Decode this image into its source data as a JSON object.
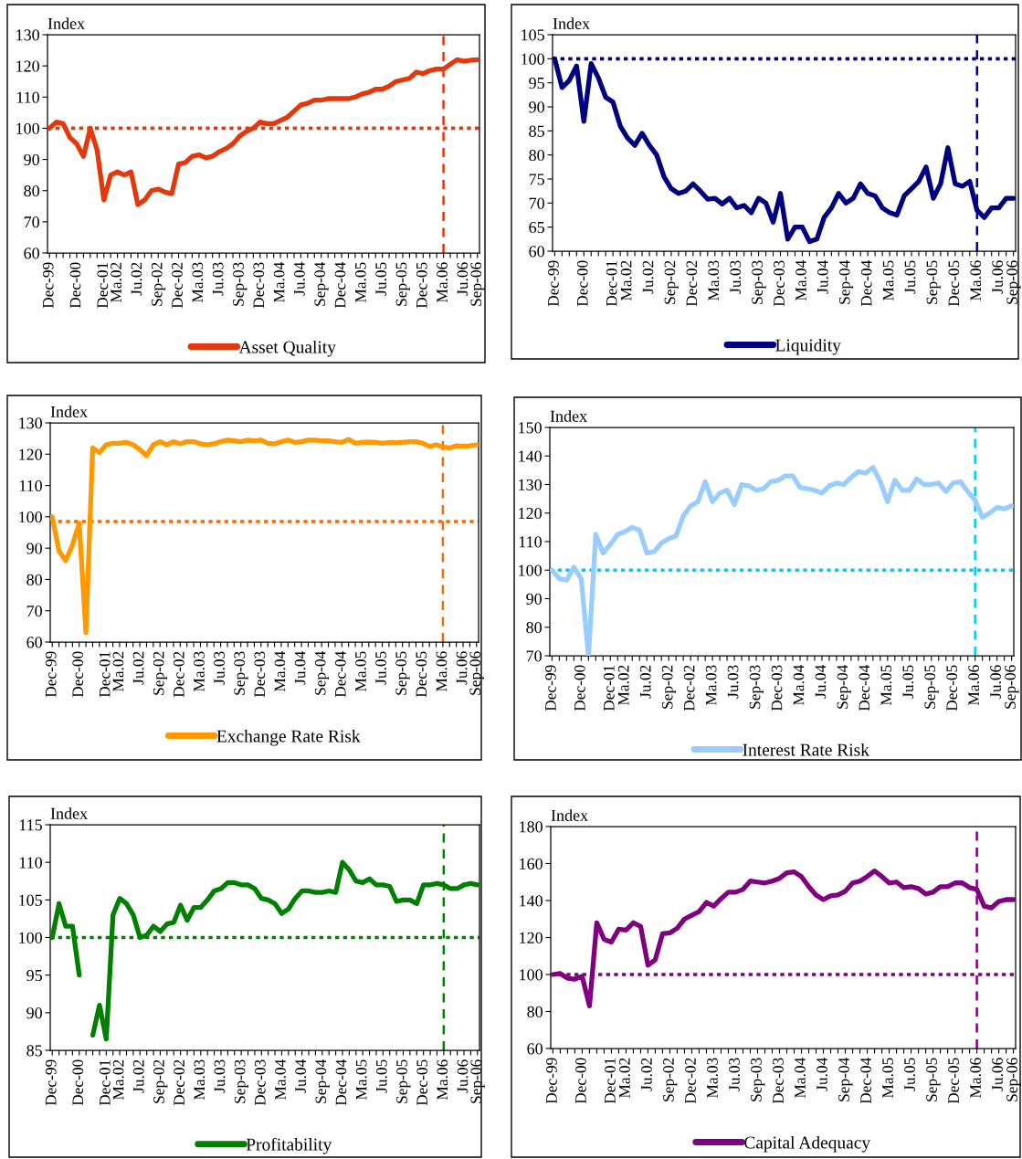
{
  "chart_data": [
    {
      "type": "line",
      "ylabel": "Index",
      "categories": [
        "Dec-99",
        null,
        null,
        null,
        "Dec-00",
        null,
        null,
        null,
        "Dec-01",
        null,
        "Ma.02",
        null,
        null,
        "Ju.02",
        null,
        null,
        "Sep-02",
        null,
        null,
        "Dec-02",
        null,
        null,
        "Ma.03",
        null,
        null,
        "Ju.03",
        null,
        null,
        "Sep-03",
        null,
        null,
        "Dec-03",
        null,
        null,
        "Ma.04",
        null,
        null,
        "Ju.04",
        null,
        null,
        "Sep-04",
        null,
        null,
        "Dec-04",
        null,
        null,
        "Ma.05",
        null,
        null,
        "Ju.05",
        null,
        null,
        "Sep-05",
        null,
        null,
        "Dec-05",
        null,
        null,
        "Ma.06",
        null,
        null,
        "Ju.06",
        null,
        "Sep-06"
      ],
      "series": [
        {
          "name": "Asset Quality",
          "color": "#e4380c",
          "values": [
            100,
            102,
            101.5,
            97,
            95,
            91,
            100,
            93,
            77,
            85,
            86,
            85,
            86,
            75.5,
            77,
            80,
            80.5,
            79.5,
            79,
            88.5,
            89,
            91,
            91.5,
            90.5,
            91,
            92.5,
            93.5,
            95,
            97.5,
            99,
            100,
            102,
            101.5,
            101.5,
            102.5,
            103.5,
            105.5,
            107.5,
            108,
            109,
            109,
            109.5,
            109.5,
            109.5,
            109.5,
            110,
            111,
            111.5,
            112.5,
            112.5,
            113.5,
            115,
            115.5,
            116,
            118,
            117.5,
            118.5,
            119,
            119,
            120.5,
            122,
            121.5,
            121.8,
            122
          ]
        }
      ],
      "ylim": [
        60,
        130
      ],
      "yticks": [
        60,
        70,
        80,
        90,
        100,
        110,
        120,
        130
      ],
      "legend": "bottom",
      "ref_lines": [
        {
          "axis": "y",
          "value": 100,
          "color": "#e4380c",
          "line_style": "dotted"
        },
        {
          "axis": "x",
          "value": "Ma.06",
          "color": "#e4380c",
          "line_style": "dashed"
        }
      ]
    },
    {
      "type": "line",
      "ylabel": "Index",
      "categories": [
        "Dec-99",
        null,
        null,
        null,
        "Dec-00",
        null,
        null,
        null,
        "Dec-01",
        null,
        "Ma.02",
        null,
        null,
        "Ju.02",
        null,
        null,
        "Sep-02",
        null,
        null,
        "Dec-02",
        null,
        null,
        "Ma.03",
        null,
        null,
        "Ju.03",
        null,
        null,
        "Sep-03",
        null,
        null,
        "Dec-03",
        null,
        null,
        "Ma.04",
        null,
        null,
        "Ju.04",
        null,
        null,
        "Sep-04",
        null,
        null,
        "Dec-04",
        null,
        null,
        "Ma.05",
        null,
        null,
        "Ju.05",
        null,
        null,
        "Sep-05",
        null,
        null,
        "Dec-05",
        null,
        null,
        "Ma.06",
        null,
        null,
        "Ju.06",
        null,
        "Sep-06"
      ],
      "series": [
        {
          "name": "Liquidity",
          "color": "#000080",
          "values": [
            100,
            94,
            95.5,
            98.5,
            87,
            99,
            96,
            92,
            91,
            86,
            83.5,
            82,
            84.5,
            82,
            80,
            75.5,
            73,
            72,
            72.5,
            74,
            72.5,
            70.8,
            71,
            69.8,
            71,
            69,
            69.5,
            68,
            71,
            70,
            66,
            72,
            62.5,
            65,
            65,
            62,
            62.5,
            67,
            69,
            72,
            70,
            71,
            74,
            72,
            71.5,
            69,
            68,
            67.5,
            71.5,
            73,
            74.5,
            77.5,
            71,
            74,
            81.5,
            74,
            73.5,
            74.5,
            68.5,
            67,
            69,
            69,
            71,
            71
          ]
        }
      ],
      "ylim": [
        60,
        105
      ],
      "yticks": [
        60,
        65,
        70,
        75,
        80,
        85,
        90,
        95,
        100,
        105
      ],
      "legend": "bottom",
      "ref_lines": [
        {
          "axis": "y",
          "value": 100,
          "color": "#000080",
          "line_style": "dotted"
        },
        {
          "axis": "x",
          "value": "Ma.06",
          "color": "#000080",
          "line_style": "dashed"
        }
      ]
    },
    {
      "type": "line",
      "ylabel": "Index",
      "categories": [
        "Dec-99",
        null,
        null,
        null,
        "Dec-00",
        null,
        null,
        null,
        "Dec-01",
        null,
        "Ma.02",
        null,
        null,
        "Ju.02",
        null,
        null,
        "Sep-02",
        null,
        null,
        "Dec-02",
        null,
        null,
        "Ma.03",
        null,
        null,
        "Ju.03",
        null,
        null,
        "Sep-03",
        null,
        null,
        "Dec-03",
        null,
        null,
        "Ma.04",
        null,
        null,
        "Ju.04",
        null,
        null,
        "Sep-04",
        null,
        null,
        "Dec-04",
        null,
        null,
        "Ma.05",
        null,
        null,
        "Ju.05",
        null,
        null,
        "Sep-05",
        null,
        null,
        "Dec-05",
        null,
        null,
        "Ma.06",
        null,
        null,
        "Ju.06",
        null,
        "Sep-06"
      ],
      "series": [
        {
          "name": "Exchange Rate Risk",
          "color": "#ff9900",
          "values": [
            100,
            89,
            86,
            91,
            98,
            63,
            122,
            120.5,
            123,
            123.5,
            123.5,
            123.8,
            123,
            121.5,
            119.5,
            123,
            124,
            123,
            124,
            123.3,
            124,
            124,
            123.3,
            123,
            123.3,
            124,
            124.5,
            124.3,
            124,
            124.5,
            124.3,
            124.5,
            123.5,
            123.3,
            124,
            124.5,
            123.8,
            124,
            124.5,
            124.5,
            124.3,
            124.3,
            124,
            123.8,
            124.7,
            123.5,
            123.8,
            123.8,
            123.8,
            123.5,
            123.7,
            123.7,
            123.8,
            124,
            124,
            123.5,
            122.5,
            123,
            122.3,
            122,
            122.7,
            122.5,
            122.7,
            123
          ]
        }
      ],
      "ylim": [
        60,
        130
      ],
      "yticks": [
        60,
        70,
        80,
        90,
        100,
        110,
        120,
        130
      ],
      "legend": "bottom",
      "ref_lines": [
        {
          "axis": "y",
          "value": 98.5,
          "color": "#ff6600",
          "line_style": "dotted"
        },
        {
          "axis": "x",
          "value": "Ma.06",
          "color": "#ff6600",
          "line_style": "dashed"
        }
      ]
    },
    {
      "type": "line",
      "ylabel": "Index",
      "categories": [
        "Dec-99",
        null,
        null,
        null,
        "Dec-00",
        null,
        null,
        null,
        "Dec-01",
        null,
        "Ma.02",
        null,
        null,
        "Ju.02",
        null,
        null,
        "Sep-02",
        null,
        null,
        "Dec-02",
        null,
        null,
        "Ma.03",
        null,
        null,
        "Ju.03",
        null,
        null,
        "Sep-03",
        null,
        null,
        "Dec-03",
        null,
        null,
        "Ma.04",
        null,
        null,
        "Ju.04",
        null,
        null,
        "Sep-04",
        null,
        null,
        "Dec-04",
        null,
        null,
        "Ma.05",
        null,
        null,
        "Ju.05",
        null,
        null,
        "Sep-05",
        null,
        null,
        "Dec-05",
        null,
        null,
        "Ma.06",
        null,
        null,
        "Ju.06",
        null,
        "Sep-06"
      ],
      "series": [
        {
          "name": "Interest Rate Risk",
          "color": "#99ccff",
          "values": [
            100,
            97,
            96.5,
            101,
            97,
            70,
            112.5,
            106,
            109,
            112.5,
            113.5,
            115,
            114,
            106,
            106.5,
            109.5,
            111,
            112,
            119,
            122.5,
            124,
            131,
            124,
            127,
            128,
            123,
            130,
            129.5,
            128,
            128.5,
            131,
            131.5,
            133,
            133,
            129,
            128.5,
            128,
            127,
            129.5,
            130.5,
            130,
            132.5,
            134.5,
            134,
            136,
            131,
            124,
            131.5,
            128,
            128,
            132,
            130,
            130,
            130.5,
            127.5,
            130.5,
            131,
            127.5,
            124.5,
            118.5,
            120,
            122,
            121.5,
            122.5
          ]
        }
      ],
      "ylim": [
        70,
        150
      ],
      "yticks": [
        70,
        80,
        90,
        100,
        110,
        120,
        130,
        140,
        150
      ],
      "legend": "bottom",
      "ref_lines": [
        {
          "axis": "y",
          "value": 100,
          "color": "#00ccff",
          "line_style": "dotted"
        },
        {
          "axis": "x",
          "value": "Ma.06",
          "color": "#00ccff",
          "line_style": "dashed"
        }
      ]
    },
    {
      "type": "line",
      "ylabel": "Index",
      "categories": [
        "Dec-99",
        null,
        null,
        null,
        "Dec-00",
        null,
        null,
        null,
        "Dec-01",
        null,
        "Ma.02",
        null,
        null,
        "Ju.02",
        null,
        null,
        "Sep-02",
        null,
        null,
        "Dec-02",
        null,
        null,
        "Ma.03",
        null,
        null,
        "Ju.03",
        null,
        null,
        "Sep-03",
        null,
        null,
        "Dec-03",
        null,
        null,
        "Ma.04",
        null,
        null,
        "Ju.04",
        null,
        null,
        "Sep-04",
        null,
        null,
        "Dec-04",
        null,
        null,
        "Ma.05",
        null,
        null,
        "Ju.05",
        null,
        null,
        "Sep-05",
        null,
        null,
        "Dec-05",
        null,
        null,
        "Ma.06",
        null,
        null,
        "Ju.06",
        null,
        "Sep-06"
      ],
      "series": [
        {
          "name": "Profitability",
          "color": "#008000",
          "values": [
            100,
            104.5,
            101.5,
            101.5,
            95,
            null,
            87,
            91,
            86.5,
            103,
            105.2,
            104.5,
            103,
            100,
            100.3,
            101.5,
            100.8,
            101.8,
            102,
            104.3,
            102.3,
            104,
            104,
            105,
            106.2,
            106.5,
            107.3,
            107.3,
            107,
            107,
            106.5,
            105.2,
            105,
            104.5,
            103.2,
            103.8,
            105.2,
            106.2,
            106.2,
            106,
            106,
            106.2,
            106,
            110,
            109,
            107.5,
            107.3,
            107.8,
            107,
            107,
            106.8,
            104.8,
            105,
            105,
            104.5,
            107,
            107,
            107.2,
            107,
            106.5,
            106.5,
            107,
            107.2,
            107
          ]
        }
      ],
      "ylim": [
        85,
        115
      ],
      "yticks": [
        85,
        90,
        95,
        100,
        105,
        110,
        115
      ],
      "legend": "bottom",
      "ref_lines": [
        {
          "axis": "y",
          "value": 100,
          "color": "#008000",
          "line_style": "dotted"
        },
        {
          "axis": "x",
          "value": "Ma.06",
          "color": "#008000",
          "line_style": "dashed"
        }
      ]
    },
    {
      "type": "line",
      "ylabel": "Index",
      "categories": [
        "Dec-99",
        null,
        null,
        null,
        "Dec-00",
        null,
        null,
        null,
        "Dec-01",
        null,
        "Ma.02",
        null,
        null,
        "Ju.02",
        null,
        null,
        "Sep-02",
        null,
        null,
        "Dec-02",
        null,
        null,
        "Ma.03",
        null,
        null,
        "Ju.03",
        null,
        null,
        "Sep-03",
        null,
        null,
        "Dec-03",
        null,
        null,
        "Ma.04",
        null,
        null,
        "Ju.04",
        null,
        null,
        "Sep-04",
        null,
        null,
        "Dec-04",
        null,
        null,
        "Ma.05",
        null,
        null,
        "Ju.05",
        null,
        null,
        "Sep-05",
        null,
        null,
        "Dec-05",
        null,
        null,
        "Ma.06",
        null,
        null,
        "Ju.06",
        null,
        "Sep-06"
      ],
      "series": [
        {
          "name": "Capital Adequacy",
          "color": "#800080",
          "values": [
            100,
            100.5,
            98,
            97.5,
            99,
            83,
            128,
            119,
            117.5,
            124.5,
            124,
            128,
            126,
            105,
            108,
            122,
            122.5,
            125,
            130,
            132,
            134,
            139,
            137,
            141,
            144.5,
            144.5,
            146,
            150.5,
            150,
            149.5,
            150.5,
            152,
            155,
            155.5,
            153,
            147.5,
            143,
            140.5,
            142.5,
            143,
            145,
            149.5,
            150.5,
            153,
            156,
            153,
            149.5,
            150,
            147,
            147.5,
            146.5,
            143.5,
            144.5,
            147.5,
            147.5,
            149.5,
            149.5,
            147,
            146,
            137,
            136,
            139.5,
            140.5,
            140.5
          ]
        }
      ],
      "ylim": [
        60,
        180
      ],
      "yticks": [
        60,
        80,
        100,
        120,
        140,
        160,
        180
      ],
      "legend": "bottom",
      "ref_lines": [
        {
          "axis": "y",
          "value": 100,
          "color": "#800080",
          "line_style": "dotted"
        },
        {
          "axis": "x",
          "value": "Ma.06",
          "color": "#800080",
          "line_style": "dashed"
        }
      ]
    }
  ]
}
